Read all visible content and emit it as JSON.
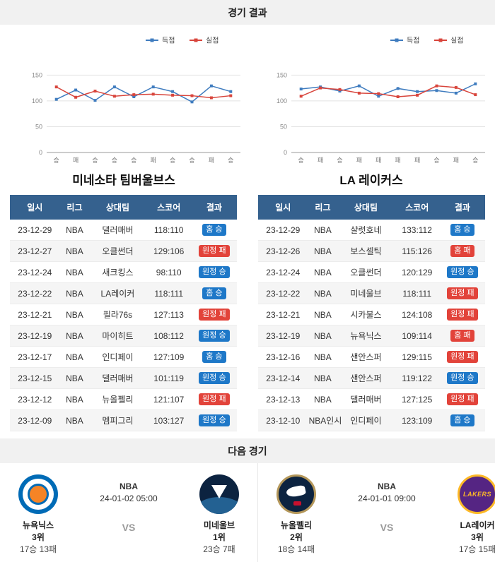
{
  "page": {
    "results_title": "경기 결과",
    "next_title": "다음 경기"
  },
  "colors": {
    "scored_line": "#3f7cbf",
    "allowed_line": "#d8453c",
    "table_header_bg": "#35618e",
    "win_badge": "#1e78c8",
    "loss_badge": "#e2433a"
  },
  "chart_data": [
    {
      "type": "line",
      "title": "",
      "legend": [
        "득점",
        "실점"
      ],
      "legend_position": "top",
      "grid": true,
      "x": [
        "승",
        "패",
        "승",
        "승",
        "승",
        "패",
        "승",
        "승",
        "패",
        "승"
      ],
      "series": [
        {
          "name": "득점",
          "color": "#3f7cbf",
          "values": [
            103,
            121,
            101,
            127,
            108,
            127,
            118,
            98,
            129,
            118
          ]
        },
        {
          "name": "실점",
          "color": "#d8453c",
          "values": [
            127,
            107,
            119,
            109,
            112,
            113,
            111,
            110,
            106,
            110
          ]
        }
      ],
      "ylim": [
        0,
        160
      ],
      "yticks": [
        0,
        50,
        100,
        150
      ]
    },
    {
      "type": "line",
      "title": "",
      "legend": [
        "득점",
        "실점"
      ],
      "legend_position": "top",
      "grid": true,
      "x": [
        "승",
        "패",
        "승",
        "패",
        "패",
        "패",
        "패",
        "승",
        "패",
        "승"
      ],
      "series": [
        {
          "name": "득점",
          "color": "#3f7cbf",
          "values": [
            123,
            127,
            119,
            129,
            109,
            124,
            118,
            120,
            115,
            133
          ]
        },
        {
          "name": "실점",
          "color": "#d8453c",
          "values": [
            109,
            125,
            122,
            115,
            114,
            108,
            111,
            129,
            126,
            112
          ]
        }
      ],
      "ylim": [
        0,
        160
      ],
      "yticks": [
        0,
        50,
        100,
        150
      ]
    }
  ],
  "tables": [
    {
      "team": "미네소타 팀버울브스",
      "headers": [
        "일시",
        "리그",
        "상대팀",
        "스코어",
        "결과"
      ],
      "rows": [
        {
          "date": "23-12-29",
          "league": "NBA",
          "opponent": "댈러매버",
          "score": "118:110",
          "result": "홈 승",
          "result_type": "win"
        },
        {
          "date": "23-12-27",
          "league": "NBA",
          "opponent": "오클썬더",
          "score": "129:106",
          "result": "원정 패",
          "result_type": "loss"
        },
        {
          "date": "23-12-24",
          "league": "NBA",
          "opponent": "새크킹스",
          "score": "98:110",
          "result": "원정 승",
          "result_type": "win"
        },
        {
          "date": "23-12-22",
          "league": "NBA",
          "opponent": "LA레이커",
          "score": "118:111",
          "result": "홈 승",
          "result_type": "win"
        },
        {
          "date": "23-12-21",
          "league": "NBA",
          "opponent": "필라76s",
          "score": "127:113",
          "result": "원정 패",
          "result_type": "loss"
        },
        {
          "date": "23-12-19",
          "league": "NBA",
          "opponent": "마이히트",
          "score": "108:112",
          "result": "원정 승",
          "result_type": "win"
        },
        {
          "date": "23-12-17",
          "league": "NBA",
          "opponent": "인디페이",
          "score": "127:109",
          "result": "홈 승",
          "result_type": "win"
        },
        {
          "date": "23-12-15",
          "league": "NBA",
          "opponent": "댈러매버",
          "score": "101:119",
          "result": "원정 승",
          "result_type": "win"
        },
        {
          "date": "23-12-12",
          "league": "NBA",
          "opponent": "뉴올펠리",
          "score": "121:107",
          "result": "원정 패",
          "result_type": "loss"
        },
        {
          "date": "23-12-09",
          "league": "NBA",
          "opponent": "멤피그리",
          "score": "103:127",
          "result": "원정 승",
          "result_type": "win"
        }
      ]
    },
    {
      "team": "LA 레이커스",
      "headers": [
        "일시",
        "리그",
        "상대팀",
        "스코어",
        "결과"
      ],
      "rows": [
        {
          "date": "23-12-29",
          "league": "NBA",
          "opponent": "샬럿호네",
          "score": "133:112",
          "result": "홈 승",
          "result_type": "win"
        },
        {
          "date": "23-12-26",
          "league": "NBA",
          "opponent": "보스셀틱",
          "score": "115:126",
          "result": "홈 패",
          "result_type": "loss"
        },
        {
          "date": "23-12-24",
          "league": "NBA",
          "opponent": "오클썬더",
          "score": "120:129",
          "result": "원정 승",
          "result_type": "win"
        },
        {
          "date": "23-12-22",
          "league": "NBA",
          "opponent": "미네울브",
          "score": "118:111",
          "result": "원정 패",
          "result_type": "loss"
        },
        {
          "date": "23-12-21",
          "league": "NBA",
          "opponent": "시카불스",
          "score": "124:108",
          "result": "원정 패",
          "result_type": "loss"
        },
        {
          "date": "23-12-19",
          "league": "NBA",
          "opponent": "뉴욕닉스",
          "score": "109:114",
          "result": "홈 패",
          "result_type": "loss"
        },
        {
          "date": "23-12-16",
          "league": "NBA",
          "opponent": "샌안스퍼",
          "score": "129:115",
          "result": "원정 패",
          "result_type": "loss"
        },
        {
          "date": "23-12-14",
          "league": "NBA",
          "opponent": "샌안스퍼",
          "score": "119:122",
          "result": "원정 승",
          "result_type": "win"
        },
        {
          "date": "23-12-13",
          "league": "NBA",
          "opponent": "댈러매버",
          "score": "127:125",
          "result": "원정 패",
          "result_type": "loss"
        },
        {
          "date": "23-12-10",
          "league": "NBA인시",
          "opponent": "인디페이",
          "score": "123:109",
          "result": "홈 승",
          "result_type": "win"
        }
      ]
    }
  ],
  "next_games": [
    {
      "league": "NBA",
      "datetime": "24-01-02 05:00",
      "vs": "VS",
      "home": {
        "name": "뉴욕닉스",
        "rank": "3위",
        "record": "17승 13패",
        "logo_icon": "knicks-roundel"
      },
      "away": {
        "name": "미네울브",
        "rank": "1위",
        "record": "23승 7패",
        "logo_icon": "timberwolves-roundel"
      }
    },
    {
      "league": "NBA",
      "datetime": "24-01-01 09:00",
      "vs": "VS",
      "home": {
        "name": "뉴올펠리",
        "rank": "2위",
        "record": "18승 14패",
        "logo_icon": "pelicans-roundel"
      },
      "away": {
        "name": "LA레이커",
        "rank": "3위",
        "record": "17승 15패",
        "logo_icon": "lakers-roundel",
        "logo_text": "LAKERS"
      }
    }
  ]
}
